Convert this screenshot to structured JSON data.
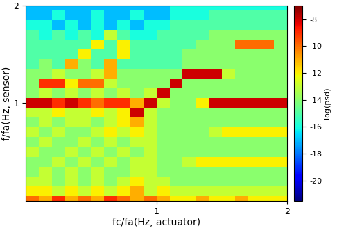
{
  "chart_data": {
    "type": "heatmap",
    "xlabel": "fc/fa(Hz, actuator)",
    "ylabel": "f/fa(Hz, sensor)",
    "color": "jet",
    "xlim": [
      0,
      2
    ],
    "ylim": [
      0,
      2
    ],
    "xticks": [
      1,
      2
    ],
    "yticks": [
      1,
      2
    ],
    "x": [
      0.05,
      0.15,
      0.25,
      0.35,
      0.45,
      0.55,
      0.65,
      0.75,
      0.85,
      0.95,
      1.05,
      1.15,
      1.25,
      1.35,
      1.45,
      1.55,
      1.65,
      1.75,
      1.85,
      1.95
    ],
    "y": [
      0.0,
      0.1,
      0.2,
      0.3,
      0.4,
      0.5,
      0.6,
      0.7,
      0.8,
      0.9,
      1.0,
      1.1,
      1.2,
      1.3,
      1.4,
      1.5,
      1.6,
      1.7,
      1.8,
      1.9,
      2.0
    ],
    "cells": [
      [
        -10,
        -11,
        -9,
        -11,
        -10,
        -11,
        -9,
        -10,
        -11,
        -10,
        -11,
        -12,
        -12,
        -11,
        -12,
        -12,
        -11,
        -12,
        -12,
        -12
      ],
      [
        -12,
        -12,
        -13,
        -12,
        -13,
        -12,
        -13,
        -12,
        -11,
        -13,
        -12,
        -13,
        -13,
        -13,
        -13,
        -13,
        -13,
        -13,
        -13,
        -13
      ],
      [
        -13,
        -13,
        -14,
        -13,
        -14,
        -13,
        -14,
        -13,
        -12,
        -13,
        -13,
        -14,
        -14,
        -14,
        -14,
        -14,
        -14,
        -14,
        -14,
        -14
      ],
      [
        -14,
        -13,
        -14,
        -13,
        -14,
        -13,
        -14,
        -14,
        -13,
        -13,
        -14,
        -14,
        -14,
        -14,
        -14,
        -14,
        -14,
        -14,
        -14,
        -14
      ],
      [
        -14,
        -14,
        -13,
        -14,
        -13,
        -14,
        -13,
        -14,
        -13,
        -13,
        -14,
        -14,
        -13,
        -12,
        -12,
        -12,
        -12,
        -12,
        -12,
        -12
      ],
      [
        -13,
        -14,
        -14,
        -13,
        -14,
        -13,
        -14,
        -13,
        -14,
        -13,
        -14,
        -14,
        -14,
        -14,
        -14,
        -14,
        -14,
        -14,
        -14,
        -14
      ],
      [
        -14,
        -13,
        -14,
        -14,
        -13,
        -14,
        -13,
        -14,
        -13,
        -13,
        -14,
        -14,
        -14,
        -14,
        -14,
        -14,
        -14,
        -14,
        -14,
        -14
      ],
      [
        -13,
        -14,
        -13,
        -14,
        -14,
        -13,
        -12,
        -13,
        -12,
        -13,
        -14,
        -14,
        -14,
        -14,
        -13,
        -12,
        -12,
        -12,
        -12,
        -12
      ],
      [
        -14,
        -13,
        -14,
        -13,
        -13,
        -14,
        -13,
        -12,
        -11,
        -13,
        -14,
        -14,
        -14,
        -14,
        -14,
        -14,
        -14,
        -14,
        -14,
        -14
      ],
      [
        -13,
        -13,
        -12,
        -13,
        -13,
        -12,
        -13,
        -12,
        -8,
        -13,
        -14,
        -14,
        -14,
        -14,
        -14,
        -14,
        -14,
        -14,
        -14,
        -14
      ],
      [
        -8,
        -8,
        -9,
        -8,
        -9,
        -10,
        -9,
        -9,
        -11,
        -8,
        -13,
        -14,
        -14,
        -12,
        -8,
        -8,
        -8,
        -8,
        -8,
        -8
      ],
      [
        -14,
        -13,
        -14,
        -13,
        -14,
        -13,
        -14,
        -13,
        -14,
        -13,
        -8,
        -14,
        -14,
        -14,
        -14,
        -14,
        -14,
        -14,
        -14,
        -14
      ],
      [
        -14,
        -9,
        -9,
        -12,
        -10,
        -10,
        -13,
        -14,
        -14,
        -14,
        -14,
        -8,
        -14,
        -14,
        -14,
        -14,
        -14,
        -14,
        -14,
        -14
      ],
      [
        -14,
        -14,
        -13,
        -14,
        -14,
        -13,
        -11,
        -14,
        -14,
        -14,
        -14,
        -14,
        -8,
        -8,
        -8,
        -13,
        -14,
        -14,
        -14,
        -14
      ],
      [
        -15,
        -14,
        -15,
        -11,
        -14,
        -15,
        -11,
        -15,
        -15,
        -15,
        -15,
        -15,
        -14,
        -14,
        -14,
        -14,
        -14,
        -14,
        -14,
        -14
      ],
      [
        -15,
        -15,
        -15,
        -15,
        -12,
        -15,
        -15,
        -12,
        -15,
        -15,
        -15,
        -15,
        -14,
        -14,
        -14,
        -14,
        -14,
        -14,
        -14,
        -14
      ],
      [
        -15,
        -15,
        -15,
        -15,
        -15,
        -12,
        -15,
        -12,
        -15,
        -15,
        -15,
        -15,
        -15,
        -14,
        -14,
        -14,
        -10,
        -10,
        -10,
        -14
      ],
      [
        -15,
        -16,
        -15,
        -16,
        -15,
        -16,
        -13,
        -15,
        -16,
        -16,
        -15,
        -15,
        -15,
        -15,
        -14,
        -14,
        -14,
        -14,
        -14,
        -14
      ],
      [
        -16,
        -16,
        -17,
        -16,
        -17,
        -16,
        -17,
        -16,
        -17,
        -16,
        -16,
        -15,
        -15,
        -15,
        -15,
        -15,
        -15,
        -15,
        -15,
        -15
      ],
      [
        -17,
        -17,
        -16,
        -17,
        -17,
        -16,
        -17,
        -17,
        -16,
        -17,
        -17,
        -16,
        -16,
        -16,
        -15,
        -15,
        -15,
        -15,
        -15,
        -15
      ],
      [
        -17,
        -17,
        -17,
        -17,
        -17,
        -17,
        -17,
        -17,
        -17,
        -17,
        -17,
        -16,
        -16,
        -16,
        -16,
        -16,
        -16,
        -16,
        -16,
        -16
      ]
    ],
    "colorbar": {
      "label": "log(psd)",
      "range": [
        -21.5,
        -7
      ],
      "ticks": [
        -8,
        -10,
        -12,
        -14,
        -16,
        -18,
        -20
      ]
    }
  }
}
